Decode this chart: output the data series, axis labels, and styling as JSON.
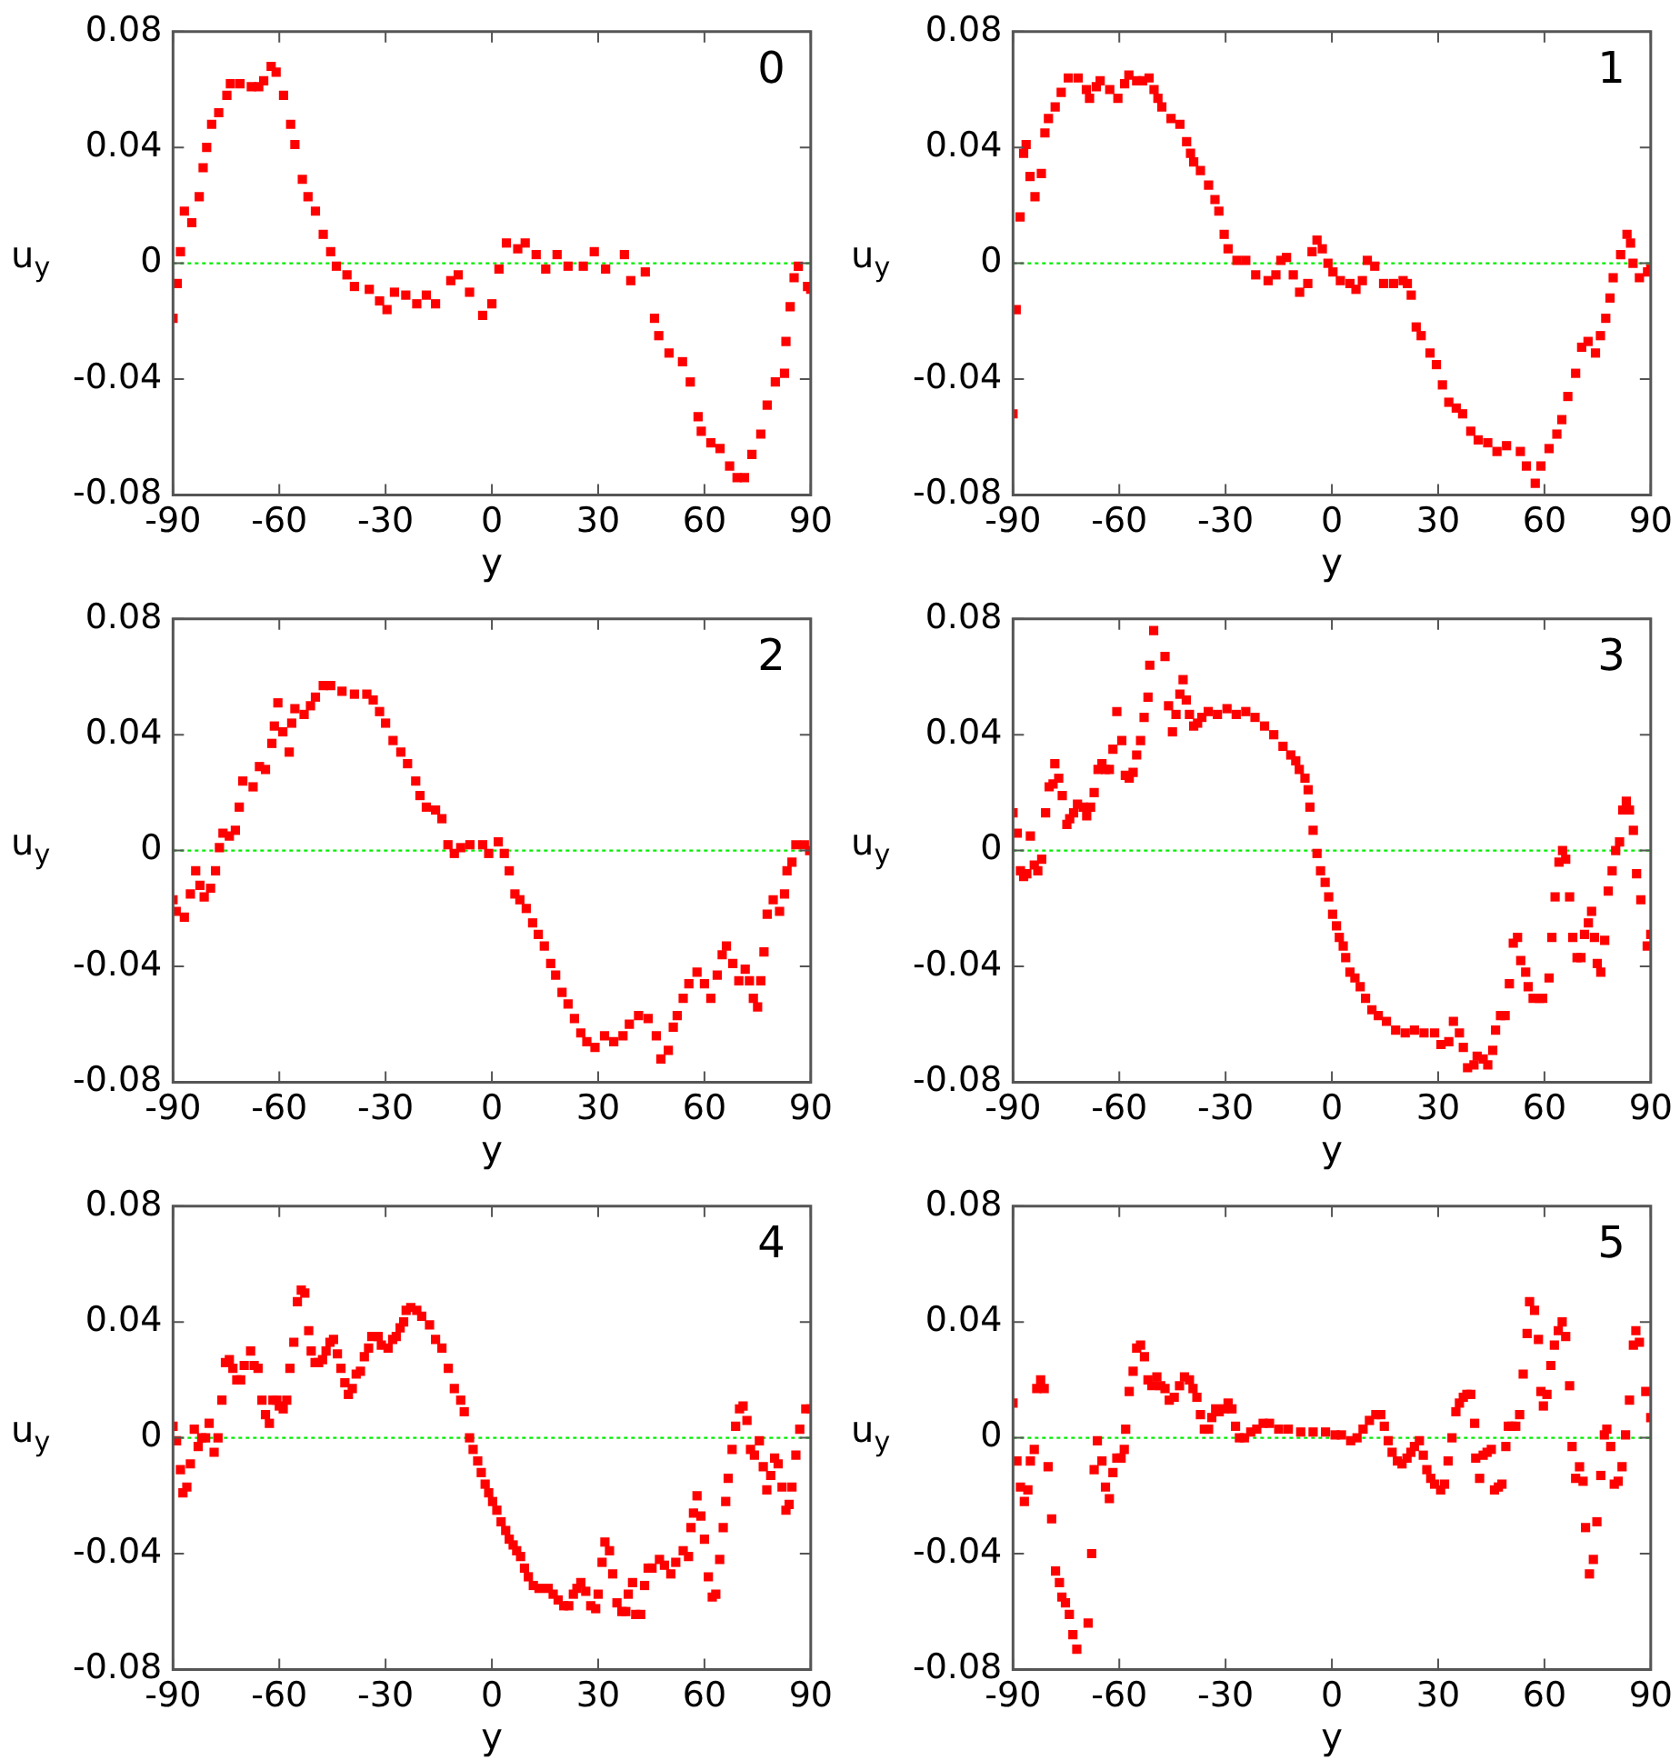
{
  "chart_data": [
    {
      "type": "scatter",
      "title": "0",
      "xlabel": "y",
      "ylabel": "u$_{y}$",
      "xlim": [
        -90,
        90
      ],
      "ylim": [
        -0.08,
        0.08
      ],
      "xticks": [
        -90,
        -60,
        -30,
        0,
        30,
        60,
        90
      ],
      "yticks": [
        -0.08,
        -0.04,
        0,
        0.04,
        0.08
      ],
      "marker": "square",
      "color": "#ff0000",
      "ref_lines": [
        {
          "axis": "y",
          "value": 0,
          "color": "#00ee00",
          "line_style": "dotted"
        }
      ],
      "x": [
        -90,
        -88.8,
        -87.9,
        -86.8,
        -84.7,
        -82.6,
        -81.5,
        -80.5,
        -79.1,
        -77.1,
        -74.8,
        -73.8,
        -71.1,
        -67.9,
        -65.8,
        -64.4,
        -62.3,
        -60.9,
        -58.8,
        -56.8,
        -55.6,
        -53.5,
        -51.9,
        -49.8,
        -47.6,
        -45.5,
        -43.9,
        -40.9,
        -38.8,
        -34.6,
        -31.7,
        -29.6,
        -27.5,
        -24.3,
        -21.2,
        -18.5,
        -15.9,
        -11.6,
        -9.5,
        -6.3,
        -2.6,
        0,
        2,
        4.1,
        7.3,
        9.4,
        12.5,
        15.2,
        18.4,
        21.5,
        25.8,
        28.9,
        32.1,
        37.4,
        39.2,
        43.3,
        45.9,
        47.1,
        50,
        53.8,
        56,
        58.2,
        59.1,
        61.8,
        64.4,
        67.1,
        69.2,
        71.3,
        73.4,
        75.9,
        77.7,
        80,
        82.6,
        83,
        84.2,
        85.3,
        86.5,
        89.1,
        90
      ],
      "values": [
        -0.019,
        -0.007,
        0.004,
        0.018,
        0.014,
        0.023,
        0.033,
        0.04,
        0.048,
        0.052,
        0.058,
        0.062,
        0.062,
        0.061,
        0.061,
        0.063,
        0.068,
        0.066,
        0.058,
        0.048,
        0.041,
        0.029,
        0.023,
        0.018,
        0.01,
        0.004,
        -0.001,
        -0.004,
        -0.008,
        -0.009,
        -0.013,
        -0.016,
        -0.01,
        -0.011,
        -0.014,
        -0.011,
        -0.014,
        -0.006,
        -0.004,
        -0.01,
        -0.018,
        -0.014,
        -0.002,
        0.007,
        0.005,
        0.007,
        0.003,
        -0.002,
        0.003,
        -0.001,
        -0.001,
        0.004,
        -0.002,
        0.003,
        -0.006,
        -0.003,
        -0.019,
        -0.025,
        -0.031,
        -0.034,
        -0.041,
        -0.053,
        -0.058,
        -0.062,
        -0.064,
        -0.07,
        -0.074,
        -0.074,
        -0.066,
        -0.059,
        -0.049,
        -0.041,
        -0.038,
        -0.027,
        -0.015,
        -0.005,
        -0.001,
        -0.008,
        -0.009
      ]
    },
    {
      "type": "scatter",
      "title": "1",
      "xlabel": "y",
      "ylabel": "u$_{y}$",
      "xlim": [
        -90,
        90
      ],
      "ylim": [
        -0.08,
        0.08
      ],
      "xticks": [
        -90,
        -60,
        -30,
        0,
        30,
        60,
        90
      ],
      "yticks": [
        -0.08,
        -0.04,
        0,
        0.04,
        0.08
      ],
      "marker": "square",
      "color": "#ff0000",
      "ref_lines": [
        {
          "axis": "y",
          "value": 0,
          "color": "#00ee00",
          "line_style": "dotted"
        }
      ],
      "x": [
        -90,
        -89.1,
        -88,
        -87,
        -86.3,
        -85.2,
        -83.8,
        -82,
        -81,
        -80,
        -78.1,
        -76.4,
        -74.4,
        -71.6,
        -69.3,
        -68.4,
        -66.5,
        -65.4,
        -62.7,
        -60.4,
        -58.5,
        -57.3,
        -55.1,
        -53.4,
        -51.6,
        -50.2,
        -49.1,
        -48,
        -45.4,
        -42.9,
        -41,
        -39.9,
        -39,
        -37.1,
        -34.8,
        -33,
        -31.9,
        -30.4,
        -29.3,
        -26.8,
        -24.3,
        -21.5,
        -18,
        -15.8,
        -14.4,
        -12.8,
        -10.9,
        -9.1,
        -6.8,
        -5.6,
        -4.2,
        -2.7,
        -1.1,
        0.3,
        2.4,
        5.1,
        6.8,
        8.6,
        10,
        12.1,
        14.6,
        17.4,
        20.1,
        21.3,
        22.4,
        23.8,
        25.2,
        27.7,
        29.5,
        31.2,
        33,
        35.1,
        36.9,
        39.2,
        41.3,
        44,
        46.6,
        49.3,
        53.2,
        54.9,
        57.4,
        59,
        61.3,
        63.5,
        64.9,
        66.6,
        68.8,
        70.5,
        72.3,
        74.4,
        75.8,
        77.3,
        78.5,
        79.4,
        81.5,
        83.3,
        84.3,
        85,
        86.8,
        89.1,
        90
      ],
      "values": [
        -0.052,
        -0.016,
        0.016,
        0.038,
        0.041,
        0.03,
        0.023,
        0.031,
        0.045,
        0.05,
        0.054,
        0.059,
        0.064,
        0.064,
        0.06,
        0.057,
        0.061,
        0.063,
        0.06,
        0.057,
        0.062,
        0.065,
        0.063,
        0.063,
        0.064,
        0.06,
        0.057,
        0.054,
        0.05,
        0.048,
        0.042,
        0.038,
        0.035,
        0.032,
        0.027,
        0.022,
        0.018,
        0.01,
        0.005,
        0.001,
        0.001,
        -0.004,
        -0.006,
        -0.004,
        0.001,
        0.002,
        -0.004,
        -0.01,
        -0.007,
        0.004,
        0.008,
        0.005,
        0,
        -0.003,
        -0.006,
        -0.007,
        -0.009,
        -0.006,
        0.001,
        -0.001,
        -0.007,
        -0.007,
        -0.006,
        -0.007,
        -0.011,
        -0.022,
        -0.025,
        -0.031,
        -0.035,
        -0.042,
        -0.048,
        -0.05,
        -0.052,
        -0.058,
        -0.061,
        -0.062,
        -0.065,
        -0.063,
        -0.065,
        -0.07,
        -0.076,
        -0.07,
        -0.064,
        -0.059,
        -0.054,
        -0.046,
        -0.038,
        -0.029,
        -0.027,
        -0.031,
        -0.025,
        -0.019,
        -0.012,
        -0.005,
        0.003,
        0.01,
        0.007,
        0,
        -0.005,
        -0.003,
        -0.002
      ]
    },
    {
      "type": "scatter",
      "title": "2",
      "xlabel": "y",
      "ylabel": "u$_{y}$",
      "xlim": [
        -90,
        90
      ],
      "ylim": [
        -0.08,
        0.08
      ],
      "xticks": [
        -90,
        -60,
        -30,
        0,
        30,
        60,
        90
      ],
      "yticks": [
        -0.08,
        -0.04,
        0,
        0.04,
        0.08
      ],
      "marker": "square",
      "color": "#ff0000",
      "ref_lines": [
        {
          "axis": "y",
          "value": 0,
          "color": "#00ee00",
          "line_style": "dotted"
        }
      ],
      "x": [
        -90,
        -89.1,
        -86.8,
        -85.1,
        -83.6,
        -82.4,
        -81.2,
        -79.4,
        -78,
        -76.9,
        -75.9,
        -74.1,
        -72.4,
        -71.3,
        -70.3,
        -67.4,
        -65.6,
        -63.9,
        -62.1,
        -61.4,
        -60.4,
        -59,
        -57.2,
        -56.5,
        -55.6,
        -53,
        -51.2,
        -49.8,
        -47.6,
        -45.5,
        -42.3,
        -38.8,
        -35.3,
        -33.5,
        -31.7,
        -30,
        -27.9,
        -25.7,
        -23.8,
        -21.5,
        -20.3,
        -18.5,
        -15.9,
        -14.1,
        -12.4,
        -10.6,
        -8.8,
        -6.2,
        -2.6,
        -0.9,
        1.8,
        3.5,
        4.9,
        6.5,
        7.9,
        9.7,
        11.5,
        13.1,
        14.8,
        16.6,
        18,
        19.8,
        21.5,
        23.3,
        25.1,
        26.8,
        29.1,
        31.8,
        34.4,
        37,
        38.8,
        41.4,
        44.1,
        46.4,
        47.7,
        49.8,
        51.2,
        52.3,
        54,
        55.6,
        57.9,
        60,
        61.8,
        63.6,
        65,
        66.2,
        68,
        69.7,
        71.5,
        72.7,
        73.8,
        75,
        75.9,
        76.8,
        77.7,
        79.4,
        81.2,
        82.6,
        83.3,
        84.7,
        85.8,
        88.2,
        89.7
      ],
      "values": [
        -0.017,
        -0.021,
        -0.023,
        -0.015,
        -0.007,
        -0.012,
        -0.016,
        -0.013,
        -0.007,
        0.001,
        0.006,
        0.005,
        0.007,
        0.015,
        0.024,
        0.022,
        0.029,
        0.028,
        0.037,
        0.043,
        0.051,
        0.041,
        0.034,
        0.044,
        0.049,
        0.047,
        0.05,
        0.053,
        0.057,
        0.057,
        0.055,
        0.054,
        0.054,
        0.052,
        0.048,
        0.044,
        0.038,
        0.034,
        0.03,
        0.024,
        0.019,
        0.015,
        0.014,
        0.011,
        0.002,
        -0.001,
        0.001,
        0.002,
        0.002,
        -0.001,
        0.003,
        -0.001,
        -0.007,
        -0.015,
        -0.017,
        -0.02,
        -0.025,
        -0.029,
        -0.033,
        -0.039,
        -0.043,
        -0.049,
        -0.053,
        -0.058,
        -0.063,
        -0.066,
        -0.068,
        -0.064,
        -0.066,
        -0.064,
        -0.06,
        -0.057,
        -0.058,
        -0.064,
        -0.072,
        -0.069,
        -0.061,
        -0.057,
        -0.051,
        -0.046,
        -0.042,
        -0.046,
        -0.051,
        -0.043,
        -0.036,
        -0.033,
        -0.039,
        -0.045,
        -0.041,
        -0.045,
        -0.051,
        -0.054,
        -0.045,
        -0.035,
        -0.022,
        -0.017,
        -0.021,
        -0.015,
        -0.007,
        -0.004,
        0.002,
        0.002,
        0
      ]
    },
    {
      "type": "scatter",
      "title": "3",
      "xlabel": "y",
      "ylabel": "u$_{y}$",
      "xlim": [
        -90,
        90
      ],
      "ylim": [
        -0.08,
        0.08
      ],
      "xticks": [
        -90,
        -60,
        -30,
        0,
        30,
        60,
        90
      ],
      "yticks": [
        -0.08,
        -0.04,
        0,
        0.04,
        0.08
      ],
      "marker": "square",
      "color": "#ff0000",
      "ref_lines": [
        {
          "axis": "y",
          "value": 0,
          "color": "#00ee00",
          "line_style": "dotted"
        }
      ],
      "x": [
        -90,
        -88.8,
        -87.9,
        -87,
        -86.1,
        -85.1,
        -84,
        -83,
        -81.9,
        -80.8,
        -79.8,
        -78.7,
        -78.2,
        -77.1,
        -76.1,
        -74.8,
        -74,
        -72.9,
        -71.8,
        -70.2,
        -69.2,
        -68.1,
        -67.1,
        -66,
        -64.9,
        -63.9,
        -62.8,
        -61.8,
        -60.7,
        -59.3,
        -58.3,
        -57.2,
        -56.1,
        -55.1,
        -54,
        -53,
        -51.9,
        -51.4,
        -50.3,
        -47.1,
        -46.1,
        -45,
        -44,
        -42.9,
        -42,
        -41.1,
        -40.2,
        -39,
        -37.9,
        -36.7,
        -34.9,
        -32.3,
        -29.6,
        -27,
        -24.3,
        -21.7,
        -19,
        -16.4,
        -13.8,
        -11.6,
        -10.2,
        -9.2,
        -7.6,
        -6.7,
        -6.2,
        -5.3,
        -4.2,
        -3.2,
        -1.9,
        -0.9,
        0.2,
        1.3,
        2.1,
        3.2,
        3.9,
        5.1,
        6.5,
        8,
        9.5,
        11.3,
        13.1,
        15.4,
        18,
        20.7,
        23.3,
        26,
        29,
        30.8,
        33,
        34.3,
        36,
        37.1,
        38.3,
        40.1,
        41,
        42.7,
        44,
        45.4,
        46.2,
        47.6,
        48.9,
        50.1,
        51.2,
        52.4,
        53.3,
        54.7,
        55.4,
        56.8,
        58.6,
        59.5,
        61.3,
        62.1,
        63,
        64.1,
        65.1,
        66,
        67.1,
        68,
        69.2,
        70.3,
        71.3,
        72.4,
        73.3,
        74.1,
        74.9,
        75.9,
        77,
        78,
        79.1,
        80.1,
        81.2,
        82.1,
        83.1,
        84,
        85.1,
        86,
        87.2,
        89,
        90
      ],
      "values": [
        0.013,
        0.006,
        -0.007,
        -0.009,
        -0.008,
        0.005,
        -0.005,
        -0.007,
        -0.003,
        0.013,
        0.022,
        0.023,
        0.03,
        0.025,
        0.019,
        0.009,
        0.011,
        0.013,
        0.016,
        0.015,
        0.012,
        0.015,
        0.02,
        0.028,
        0.03,
        0.028,
        0.028,
        0.035,
        0.048,
        0.038,
        0.026,
        0.025,
        0.027,
        0.033,
        0.038,
        0.046,
        0.053,
        0.064,
        0.076,
        0.067,
        0.05,
        0.041,
        0.047,
        0.054,
        0.059,
        0.052,
        0.047,
        0.043,
        0.044,
        0.046,
        0.048,
        0.047,
        0.049,
        0.047,
        0.048,
        0.046,
        0.043,
        0.04,
        0.036,
        0.033,
        0.031,
        0.028,
        0.025,
        0.021,
        0.015,
        0.007,
        -0.001,
        -0.007,
        -0.011,
        -0.016,
        -0.022,
        -0.026,
        -0.03,
        -0.033,
        -0.037,
        -0.042,
        -0.044,
        -0.047,
        -0.051,
        -0.055,
        -0.057,
        -0.059,
        -0.062,
        -0.063,
        -0.062,
        -0.063,
        -0.063,
        -0.067,
        -0.066,
        -0.059,
        -0.063,
        -0.068,
        -0.075,
        -0.074,
        -0.071,
        -0.072,
        -0.074,
        -0.069,
        -0.062,
        -0.057,
        -0.057,
        -0.046,
        -0.032,
        -0.03,
        -0.038,
        -0.042,
        -0.047,
        -0.051,
        -0.051,
        -0.051,
        -0.044,
        -0.03,
        -0.016,
        -0.004,
        0,
        -0.003,
        -0.016,
        -0.03,
        -0.037,
        -0.037,
        -0.029,
        -0.025,
        -0.021,
        -0.03,
        -0.039,
        -0.042,
        -0.031,
        -0.014,
        -0.007,
        0,
        0.003,
        0.014,
        0.017,
        0.014,
        0.007,
        -0.008,
        -0.017,
        -0.033,
        -0.029
      ]
    },
    {
      "type": "scatter",
      "title": "4",
      "xlabel": "y",
      "ylabel": "u$_{y}$",
      "xlim": [
        -90,
        90
      ],
      "ylim": [
        -0.08,
        0.08
      ],
      "xticks": [
        -90,
        -60,
        -30,
        0,
        30,
        60,
        90
      ],
      "yticks": [
        -0.08,
        -0.04,
        0,
        0.04,
        0.08
      ],
      "marker": "square",
      "color": "#ff0000",
      "ref_lines": [
        {
          "axis": "y",
          "value": 0,
          "color": "#00ee00",
          "line_style": "dotted"
        }
      ],
      "x": [
        -90,
        -89,
        -87.9,
        -87.2,
        -86.1,
        -85.1,
        -84,
        -82.9,
        -81.9,
        -80.8,
        -79.8,
        -78.4,
        -77.3,
        -76.2,
        -75.2,
        -74.1,
        -73.1,
        -72,
        -70.9,
        -69.9,
        -68.1,
        -67.1,
        -66,
        -64.9,
        -63.9,
        -62.8,
        -61.8,
        -60.7,
        -60,
        -58.9,
        -57.9,
        -57,
        -55.9,
        -54.9,
        -53.8,
        -52.8,
        -51.7,
        -51,
        -49.9,
        -48.9,
        -47.8,
        -46.8,
        -45.7,
        -44.7,
        -43.6,
        -42.6,
        -41.5,
        -40.5,
        -39.4,
        -38.3,
        -37.1,
        -36,
        -34.8,
        -33.9,
        -32.1,
        -31.2,
        -29.3,
        -28,
        -27,
        -25.9,
        -24.9,
        -24.2,
        -22.9,
        -21.2,
        -19.8,
        -17.6,
        -15.9,
        -14.1,
        -12.3,
        -10.6,
        -8.8,
        -7.8,
        -6.3,
        -5.3,
        -4,
        -3,
        -1.9,
        -0.9,
        0.2,
        1.4,
        2.6,
        3.9,
        4.9,
        6,
        7,
        8.1,
        9.2,
        10.3,
        11.7,
        13.3,
        15.9,
        17.3,
        18.7,
        20.3,
        21.7,
        23,
        24,
        25.1,
        26.5,
        27.9,
        29.3,
        30,
        31.1,
        31.9,
        33.2,
        34.1,
        35.3,
        36.7,
        37.8,
        38.5,
        39.7,
        40.6,
        42,
        43.1,
        44.1,
        45.2,
        47.3,
        48.7,
        50.5,
        51.9,
        54,
        55.5,
        56.2,
        56.9,
        57.9,
        59,
        60,
        61.1,
        62.2,
        63.2,
        64.3,
        65.3,
        66,
        66.7,
        67.8,
        68.8,
        69.9,
        70.9,
        72,
        73,
        74.1,
        75.5,
        76.6,
        77.6,
        78.7,
        79.8,
        80.8,
        81.9,
        83,
        83.9,
        84.7,
        85.8,
        86.9,
        88.6,
        90
      ],
      "values": [
        0.004,
        -0.001,
        -0.011,
        -0.019,
        -0.017,
        -0.009,
        0.003,
        -0.003,
        0,
        0,
        0.005,
        -0.005,
        0,
        0.013,
        0.026,
        0.027,
        0.024,
        0.02,
        0.02,
        0.025,
        0.03,
        0.025,
        0.024,
        0.013,
        0.008,
        0.005,
        0.013,
        0.013,
        0.011,
        0.01,
        0.013,
        0.024,
        0.033,
        0.047,
        0.051,
        0.05,
        0.037,
        0.03,
        0.026,
        0.026,
        0.027,
        0.03,
        0.033,
        0.034,
        0.029,
        0.024,
        0.019,
        0.015,
        0.017,
        0.022,
        0.023,
        0.028,
        0.031,
        0.035,
        0.035,
        0.032,
        0.031,
        0.034,
        0.035,
        0.038,
        0.04,
        0.044,
        0.045,
        0.044,
        0.042,
        0.039,
        0.034,
        0.031,
        0.024,
        0.017,
        0.013,
        0.009,
        0,
        -0.004,
        -0.008,
        -0.012,
        -0.016,
        -0.019,
        -0.022,
        -0.025,
        -0.029,
        -0.032,
        -0.035,
        -0.037,
        -0.039,
        -0.041,
        -0.045,
        -0.048,
        -0.051,
        -0.052,
        -0.052,
        -0.054,
        -0.056,
        -0.058,
        -0.058,
        -0.054,
        -0.052,
        -0.05,
        -0.053,
        -0.058,
        -0.059,
        -0.054,
        -0.043,
        -0.036,
        -0.039,
        -0.047,
        -0.057,
        -0.06,
        -0.06,
        -0.054,
        -0.05,
        -0.061,
        -0.061,
        -0.051,
        -0.045,
        -0.045,
        -0.042,
        -0.044,
        -0.047,
        -0.043,
        -0.039,
        -0.041,
        -0.031,
        -0.026,
        -0.02,
        -0.027,
        -0.035,
        -0.048,
        -0.055,
        -0.054,
        -0.042,
        -0.031,
        -0.022,
        -0.014,
        -0.004,
        0.004,
        0.01,
        0.011,
        0.006,
        -0.004,
        -0.006,
        -0.001,
        -0.01,
        -0.018,
        -0.013,
        -0.007,
        -0.009,
        -0.017,
        -0.025,
        -0.023,
        -0.017,
        -0.006,
        0.003,
        0.01,
        0.01
      ]
    },
    {
      "type": "scatter",
      "title": "5",
      "xlabel": "y",
      "ylabel": "u$_{y}$",
      "xlim": [
        -90,
        90
      ],
      "ylim": [
        -0.08,
        0.08
      ],
      "xticks": [
        -90,
        -60,
        -30,
        0,
        30,
        60,
        90
      ],
      "yticks": [
        -0.08,
        -0.04,
        0,
        0.04,
        0.08
      ],
      "marker": "square",
      "color": "#ff0000",
      "ref_lines": [
        {
          "axis": "y",
          "value": 0,
          "color": "#00ee00",
          "line_style": "dotted"
        }
      ],
      "x": [
        -90,
        -88.9,
        -87.9,
        -86.8,
        -85.8,
        -85.1,
        -84,
        -83.3,
        -82.2,
        -81.2,
        -80.1,
        -79.1,
        -78,
        -76.9,
        -76.2,
        -75.2,
        -74.1,
        -73.1,
        -72,
        -68.8,
        -67.8,
        -67.1,
        -66.2,
        -64.9,
        -63.9,
        -62.8,
        -61.8,
        -60.7,
        -59.5,
        -58.6,
        -58.2,
        -57.2,
        -56.1,
        -55.1,
        -54,
        -52.9,
        -51.9,
        -50.8,
        -49.4,
        -48.3,
        -47.1,
        -45.9,
        -44.5,
        -43,
        -41.6,
        -40.2,
        -39.2,
        -38.1,
        -37.1,
        -36,
        -34.8,
        -33.9,
        -32.8,
        -31.8,
        -30.3,
        -29.3,
        -28.2,
        -27.2,
        -26.1,
        -24.7,
        -22.9,
        -21.2,
        -19.4,
        -17.6,
        -15,
        -12.3,
        -8.8,
        -5.3,
        -1.8,
        0.9,
        2.7,
        5.3,
        7.1,
        8.8,
        10.6,
        12.4,
        13.8,
        14.8,
        15.9,
        17,
        18.5,
        19.8,
        21.2,
        22.3,
        23.3,
        24.7,
        25.8,
        26.8,
        27.9,
        29,
        30.7,
        31.8,
        32.8,
        33.9,
        35,
        36,
        37.1,
        38.1,
        39.2,
        40.3,
        40.6,
        41.7,
        42.7,
        43.8,
        45,
        45.9,
        47,
        48,
        49.1,
        49.8,
        50.8,
        51.9,
        53,
        54,
        55.1,
        55.8,
        57.2,
        58.3,
        59,
        59.7,
        60.7,
        61.8,
        62.8,
        63.9,
        65,
        66,
        67.1,
        67.8,
        68.8,
        69.9,
        70.9,
        71.6,
        72.7,
        73.8,
        74.8,
        75.9,
        76.9,
        77.6,
        78.7,
        79.7,
        80.8,
        81.9,
        82.9,
        84,
        85.1,
        85.8,
        86.8,
        88.6,
        90
      ],
      "values": [
        0.012,
        -0.008,
        -0.017,
        -0.022,
        -0.018,
        -0.008,
        -0.004,
        0.017,
        0.02,
        0.017,
        -0.01,
        -0.028,
        -0.046,
        -0.05,
        -0.055,
        -0.057,
        -0.061,
        -0.068,
        -0.073,
        -0.064,
        -0.04,
        -0.011,
        -0.001,
        -0.008,
        -0.017,
        -0.021,
        -0.012,
        -0.007,
        -0.007,
        -0.004,
        0.003,
        0.016,
        0.023,
        0.031,
        0.032,
        0.028,
        0.02,
        0.018,
        0.021,
        0.018,
        0.017,
        0.013,
        0.014,
        0.018,
        0.021,
        0.02,
        0.017,
        0.014,
        0.008,
        0.003,
        0.003,
        0.007,
        0.01,
        0.009,
        0.01,
        0.012,
        0.01,
        0.004,
        0,
        0,
        0.002,
        0.003,
        0.005,
        0.005,
        0.003,
        0.003,
        0.002,
        0.002,
        0.002,
        0.001,
        0.001,
        -0.001,
        0,
        0.003,
        0.006,
        0.008,
        0.008,
        0.004,
        -0.001,
        -0.005,
        -0.008,
        -0.009,
        -0.007,
        -0.005,
        -0.003,
        -0.001,
        -0.006,
        -0.011,
        -0.014,
        -0.016,
        -0.018,
        -0.016,
        -0.008,
        0,
        0.009,
        0.012,
        0.014,
        0.015,
        0.015,
        0.005,
        -0.007,
        -0.014,
        -0.006,
        -0.005,
        -0.004,
        -0.018,
        -0.017,
        -0.016,
        -0.003,
        0.004,
        0.004,
        0.004,
        0.008,
        0.022,
        0.036,
        0.047,
        0.044,
        0.034,
        0.016,
        0.011,
        0.015,
        0.025,
        0.032,
        0.037,
        0.04,
        0.035,
        0.018,
        -0.003,
        -0.014,
        -0.01,
        -0.015,
        -0.031,
        -0.047,
        -0.042,
        -0.029,
        -0.013,
        0.001,
        0.003,
        -0.003,
        -0.016,
        -0.015,
        -0.01,
        0.001,
        0.013,
        0.032,
        0.037,
        0.033,
        0.016,
        0.007
      ]
    }
  ]
}
